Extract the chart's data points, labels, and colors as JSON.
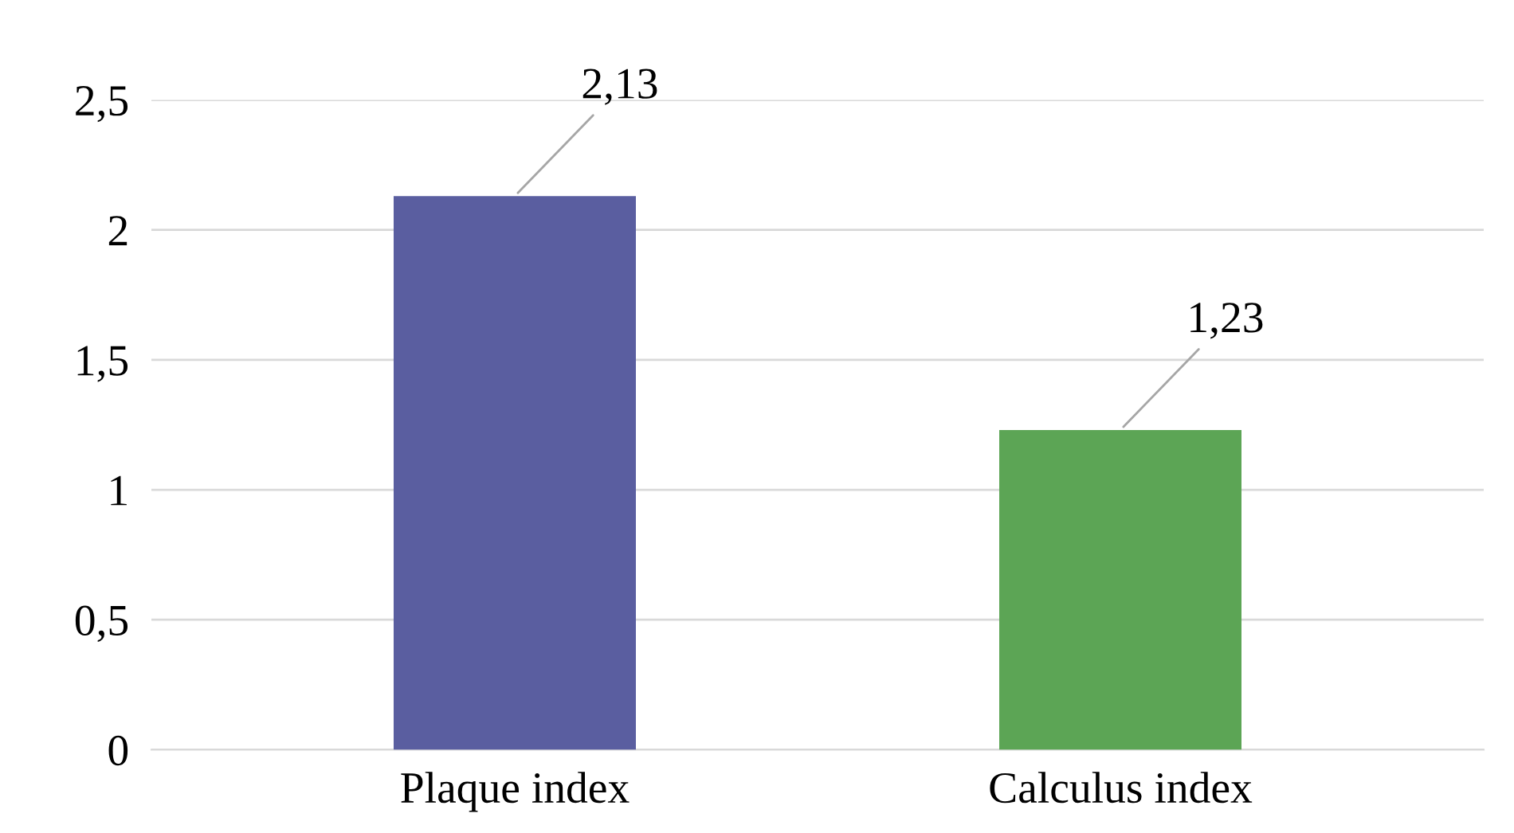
{
  "chart_data": {
    "type": "bar",
    "categories": [
      "Plaque index",
      "Calculus index"
    ],
    "values": [
      2.13,
      1.23
    ],
    "colors": [
      "#5a5ea0",
      "#5ca555"
    ],
    "value_labels": [
      "2,13",
      "1,23"
    ],
    "ylim": [
      0,
      2.5
    ],
    "yticks": [
      {
        "value": 0,
        "label": "0"
      },
      {
        "value": 0.5,
        "label": "0,5"
      },
      {
        "value": 1,
        "label": "1"
      },
      {
        "value": 1.5,
        "label": "1,5"
      },
      {
        "value": 2,
        "label": "2"
      },
      {
        "value": 2.5,
        "label": "2,5"
      }
    ],
    "grid": "y"
  }
}
